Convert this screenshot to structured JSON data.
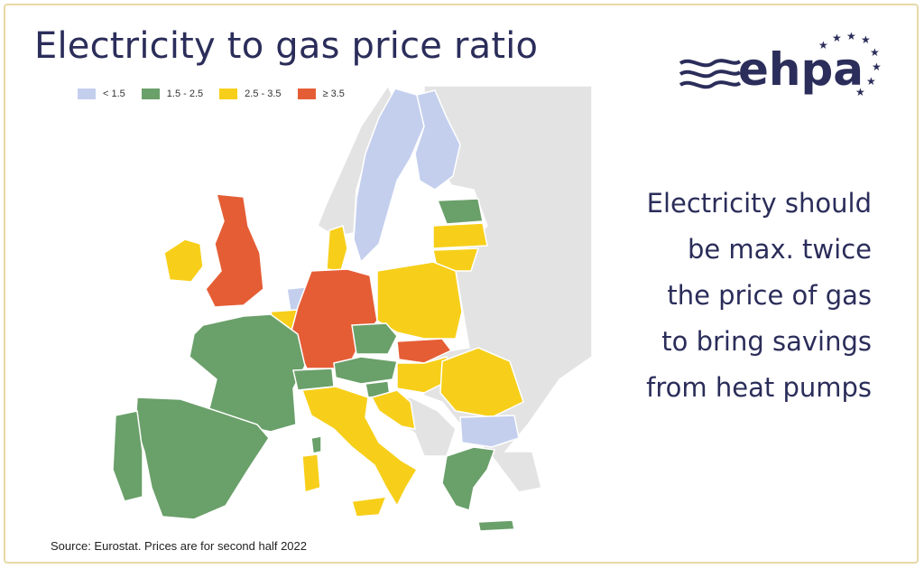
{
  "title": "Electricity to gas price ratio",
  "legend": [
    {
      "label": "< 1.5",
      "color": "#c4cfee"
    },
    {
      "label": "1.5 - 2.5",
      "color": "#6aa06a"
    },
    {
      "label": "2.5 - 3.5",
      "color": "#f7cf1a"
    },
    {
      "label": "≥ 3.5",
      "color": "#e55d35"
    }
  ],
  "side_text": [
    "Electricity should",
    "be max. twice",
    "the price of gas",
    "to bring savings",
    "from heat pumps"
  ],
  "source": "Source: Eurostat. Prices are for second half 2022",
  "logo": {
    "text": "ehpa"
  },
  "colors": {
    "nodata": "#e3e3e3",
    "title": "#2b2d5a"
  }
}
